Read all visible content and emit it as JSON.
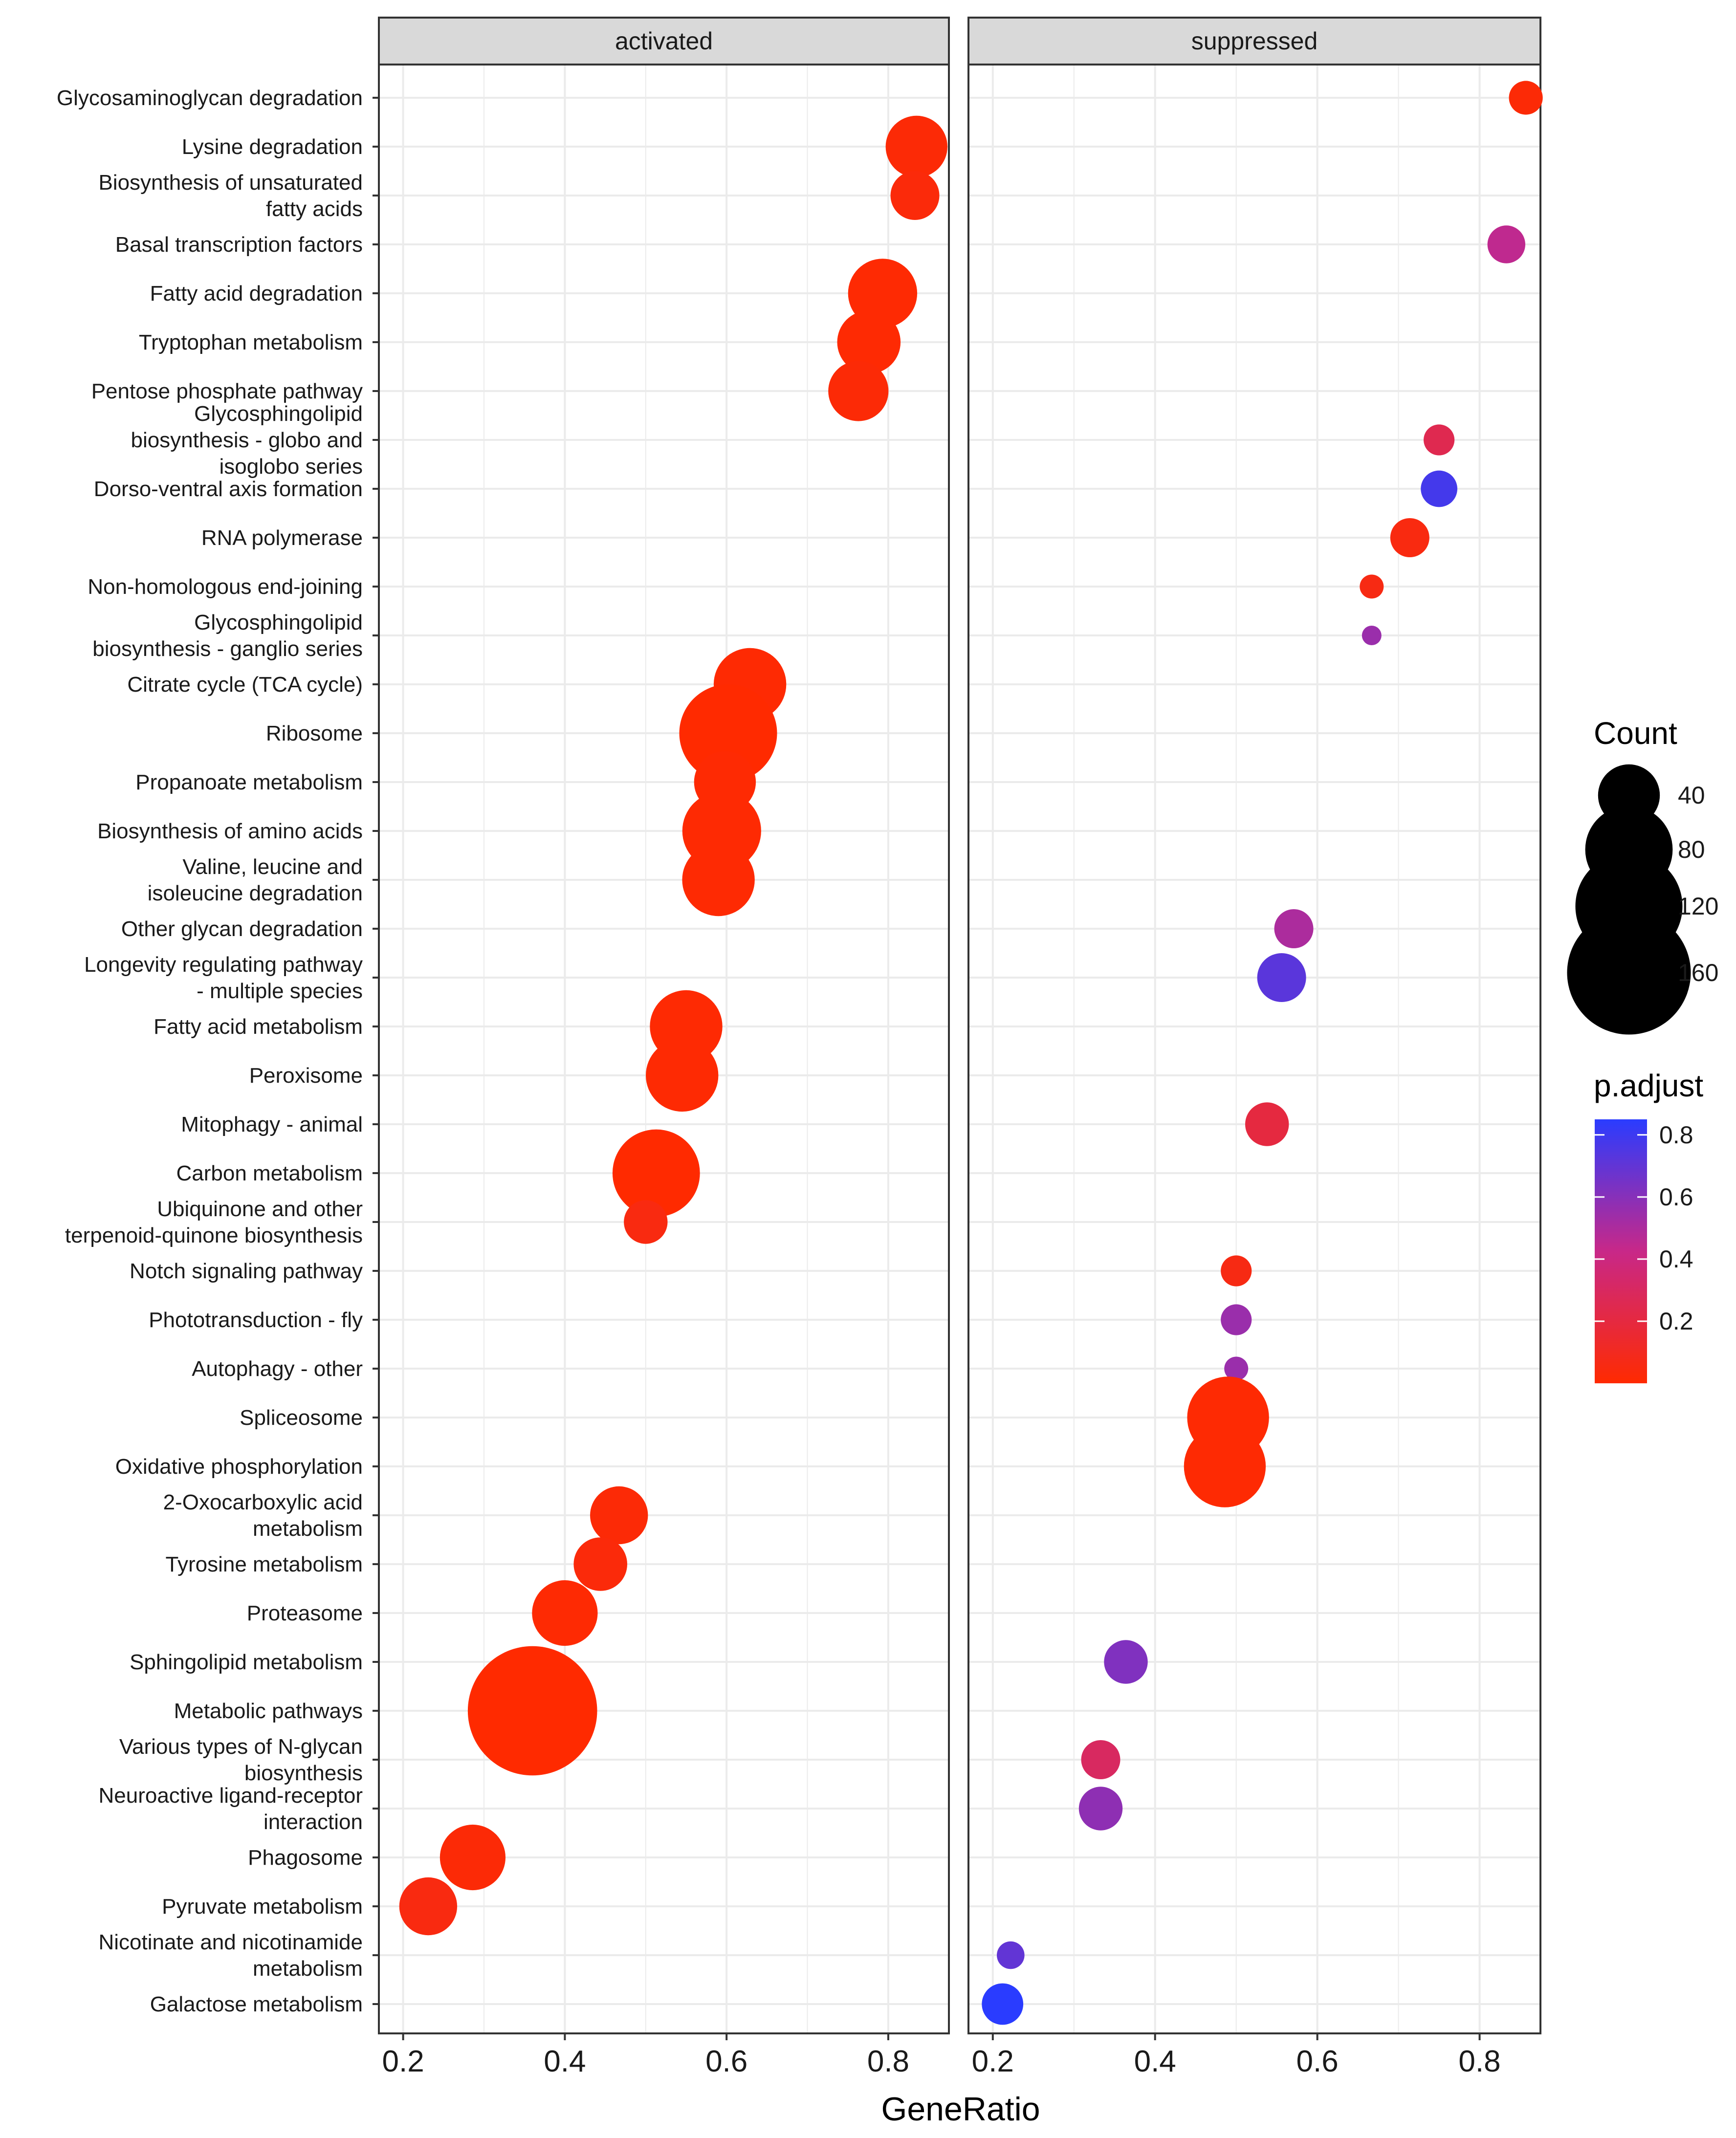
{
  "chart_data": {
    "type": "scatter",
    "panels": [
      "activated",
      "suppressed"
    ],
    "categories": [
      "Glycosaminoglycan degradation",
      "Lysine degradation",
      [
        "Biosynthesis of unsaturated",
        "fatty acids"
      ],
      "Basal transcription factors",
      "Fatty acid degradation",
      "Tryptophan metabolism",
      "Pentose phosphate pathway",
      [
        "Glycosphingolipid",
        "biosynthesis - globo and",
        "isoglobo series"
      ],
      "Dorso-ventral axis formation",
      "RNA polymerase",
      "Non-homologous end-joining",
      [
        "Glycosphingolipid",
        "biosynthesis - ganglio series"
      ],
      "Citrate cycle (TCA cycle)",
      "Ribosome",
      "Propanoate metabolism",
      "Biosynthesis of amino acids",
      [
        "Valine, leucine and",
        "isoleucine degradation"
      ],
      "Other glycan degradation",
      [
        "Longevity regulating pathway",
        "- multiple species"
      ],
      "Fatty acid metabolism",
      "Peroxisome",
      "Mitophagy - animal",
      "Carbon metabolism",
      [
        "Ubiquinone and other",
        "terpenoid-quinone biosynthesis"
      ],
      "Notch signaling pathway",
      "Phototransduction - fly",
      "Autophagy - other",
      "Spliceosome",
      "Oxidative phosphorylation",
      [
        "2-Oxocarboxylic acid",
        "metabolism"
      ],
      "Tyrosine metabolism",
      "Proteasome",
      "Sphingolipid metabolism",
      "Metabolic pathways",
      [
        "Various types of N-glycan",
        "biosynthesis"
      ],
      [
        "Neuroactive ligand-receptor",
        "interaction"
      ],
      "Phagosome",
      "Pyruvate metabolism",
      [
        "Nicotinate and nicotinamide",
        "metabolism"
      ],
      "Galactose metabolism"
    ],
    "points": [
      {
        "panel": 1,
        "row": 0,
        "x": 0.857,
        "count": 12,
        "p": 0.02
      },
      {
        "panel": 0,
        "row": 1,
        "x": 0.835,
        "count": 40,
        "p": 0.02
      },
      {
        "panel": 0,
        "row": 2,
        "x": 0.833,
        "count": 25,
        "p": 0.03
      },
      {
        "panel": 1,
        "row": 3,
        "x": 0.833,
        "count": 15,
        "p": 0.45
      },
      {
        "panel": 0,
        "row": 4,
        "x": 0.793,
        "count": 50,
        "p": 0.01
      },
      {
        "panel": 0,
        "row": 5,
        "x": 0.776,
        "count": 42,
        "p": 0.01
      },
      {
        "panel": 0,
        "row": 6,
        "x": 0.763,
        "count": 38,
        "p": 0.02
      },
      {
        "panel": 1,
        "row": 7,
        "x": 0.75,
        "count": 10,
        "p": 0.25
      },
      {
        "panel": 1,
        "row": 8,
        "x": 0.75,
        "count": 14,
        "p": 0.78
      },
      {
        "panel": 1,
        "row": 9,
        "x": 0.714,
        "count": 16,
        "p": 0.05
      },
      {
        "panel": 1,
        "row": 10,
        "x": 0.667,
        "count": 6,
        "p": 0.06
      },
      {
        "panel": 1,
        "row": 11,
        "x": 0.667,
        "count": 4,
        "p": 0.55
      },
      {
        "panel": 0,
        "row": 12,
        "x": 0.629,
        "count": 55,
        "p": 0.01
      },
      {
        "panel": 0,
        "row": 13,
        "x": 0.602,
        "count": 100,
        "p": 0.0
      },
      {
        "panel": 0,
        "row": 14,
        "x": 0.598,
        "count": 40,
        "p": 0.01
      },
      {
        "panel": 0,
        "row": 15,
        "x": 0.594,
        "count": 65,
        "p": 0.01
      },
      {
        "panel": 0,
        "row": 16,
        "x": 0.59,
        "count": 55,
        "p": 0.01
      },
      {
        "panel": 1,
        "row": 17,
        "x": 0.571,
        "count": 16,
        "p": 0.5
      },
      {
        "panel": 1,
        "row": 18,
        "x": 0.556,
        "count": 25,
        "p": 0.72
      },
      {
        "panel": 0,
        "row": 19,
        "x": 0.55,
        "count": 55,
        "p": 0.01
      },
      {
        "panel": 0,
        "row": 20,
        "x": 0.545,
        "count": 55,
        "p": 0.01
      },
      {
        "panel": 1,
        "row": 21,
        "x": 0.538,
        "count": 20,
        "p": 0.2
      },
      {
        "panel": 0,
        "row": 22,
        "x": 0.513,
        "count": 80,
        "p": 0.0
      },
      {
        "panel": 0,
        "row": 23,
        "x": 0.5,
        "count": 20,
        "p": 0.05
      },
      {
        "panel": 1,
        "row": 24,
        "x": 0.5,
        "count": 10,
        "p": 0.06
      },
      {
        "panel": 1,
        "row": 25,
        "x": 0.5,
        "count": 10,
        "p": 0.55
      },
      {
        "panel": 1,
        "row": 26,
        "x": 0.5,
        "count": 6,
        "p": 0.55
      },
      {
        "panel": 1,
        "row": 27,
        "x": 0.49,
        "count": 70,
        "p": 0.01
      },
      {
        "panel": 1,
        "row": 28,
        "x": 0.486,
        "count": 70,
        "p": 0.01
      },
      {
        "panel": 0,
        "row": 29,
        "x": 0.467,
        "count": 35,
        "p": 0.02
      },
      {
        "panel": 0,
        "row": 30,
        "x": 0.444,
        "count": 30,
        "p": 0.03
      },
      {
        "panel": 0,
        "row": 31,
        "x": 0.4,
        "count": 45,
        "p": 0.01
      },
      {
        "panel": 1,
        "row": 32,
        "x": 0.364,
        "count": 20,
        "p": 0.62
      },
      {
        "panel": 0,
        "row": 33,
        "x": 0.36,
        "count": 175,
        "p": 0.0
      },
      {
        "panel": 1,
        "row": 34,
        "x": 0.333,
        "count": 16,
        "p": 0.3
      },
      {
        "panel": 1,
        "row": 35,
        "x": 0.333,
        "count": 20,
        "p": 0.58
      },
      {
        "panel": 0,
        "row": 36,
        "x": 0.286,
        "count": 45,
        "p": 0.02
      },
      {
        "panel": 0,
        "row": 37,
        "x": 0.231,
        "count": 35,
        "p": 0.05
      },
      {
        "panel": 1,
        "row": 38,
        "x": 0.222,
        "count": 8,
        "p": 0.7
      },
      {
        "panel": 1,
        "row": 39,
        "x": 0.212,
        "count": 18,
        "p": 0.85
      }
    ],
    "xlabel": "GeneRatio",
    "xlim": [
      0.17,
      0.875
    ],
    "xticks": [
      0.2,
      0.4,
      0.6,
      0.8
    ],
    "xtick_labels": [
      "0.2",
      "0.4",
      "0.6",
      "0.8"
    ],
    "size_legend": {
      "title": "Count",
      "values": [
        40,
        80,
        120,
        160
      ],
      "labels": [
        "40",
        "80",
        "120",
        "160"
      ]
    },
    "color_legend": {
      "title": "p.adjust",
      "range": [
        0.0,
        0.85
      ],
      "ticks": [
        0.2,
        0.4,
        0.6,
        0.8
      ],
      "labels": [
        "0.2",
        "0.4",
        "0.6",
        "0.8"
      ],
      "low_color": "#ff2a00",
      "mid_color": "#c82888",
      "high_color": "#2a3cff"
    },
    "colors": {
      "panel_bg": "#ffffff",
      "strip_bg": "#d9d9d9",
      "grid": "#ebebeb",
      "border": "#333333",
      "point_low": "#ff2a00",
      "point_high": "#2a3cff"
    }
  }
}
